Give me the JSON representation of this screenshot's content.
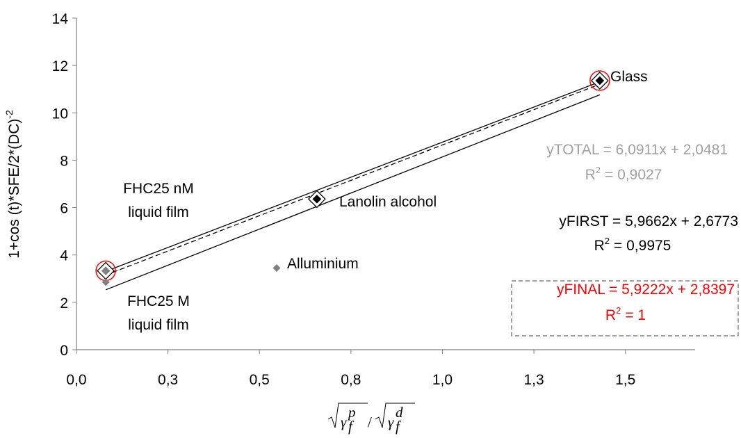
{
  "chart_data": {
    "type": "scatter",
    "y_label": "1+cos (t)*SFE/2*(DC)",
    "y_label_sup": "-2",
    "x_label": {
      "gamma": "γ",
      "sup_p": "p",
      "sub": "f",
      "slash": "/",
      "sup_d": "d"
    },
    "xlim": [
      0,
      1.7
    ],
    "ylim": [
      0,
      14
    ],
    "xticks": [
      {
        "value": 0,
        "label": "0,0"
      },
      {
        "value": 0.25,
        "label": "0,3"
      },
      {
        "value": 0.5,
        "label": "0,5"
      },
      {
        "value": 0.75,
        "label": "0,8"
      },
      {
        "value": 1.0,
        "label": "1,0"
      },
      {
        "value": 1.25,
        "label": "1,3"
      },
      {
        "value": 1.5,
        "label": "1,5"
      }
    ],
    "yticks": [
      0,
      2,
      4,
      6,
      8,
      10,
      12,
      14
    ],
    "points": [
      {
        "label": [
          "FHC25 nM",
          "liquid film"
        ],
        "x": 0.08,
        "y": 3.33,
        "color": "#808080",
        "style": "framed",
        "circled": true
      },
      {
        "label": [
          "FHC25 M",
          "liquid film"
        ],
        "x": 0.08,
        "y": 2.85,
        "color": "#808080",
        "style": "small"
      },
      {
        "label": [
          "Alluminium"
        ],
        "x": 0.547,
        "y": 3.45,
        "color": "#808080",
        "style": "small"
      },
      {
        "label": [
          "Lanolin alcohol"
        ],
        "x": 0.657,
        "y": 6.36,
        "color": "#000000",
        "style": "framed"
      },
      {
        "label": [
          "Glass"
        ],
        "x": 1.43,
        "y": 11.36,
        "color": "#000000",
        "style": "framed",
        "circled": true
      }
    ],
    "fits": [
      {
        "x": [
          0.08,
          1.43
        ],
        "values": [
          2.53,
          10.76
        ],
        "dash": false,
        "text": "yTOTAL = 6,0911x + 2,0481",
        "r2": "= 0,9027",
        "color": "#a0a0a0"
      },
      {
        "x": [
          0.08,
          1.43
        ],
        "values": [
          3.15,
          11.21
        ],
        "dash": true,
        "text": "yFIRST = 5,9662x + 2,6773",
        "r2": "= 0,9975",
        "color": "#000000"
      },
      {
        "x": [
          0.08,
          1.43
        ],
        "values": [
          3.31,
          11.31
        ],
        "dash": false,
        "text": "yFINAL = 5,9222x + 2,8397",
        "r2": "= 1",
        "color": "#ff0000",
        "boxed": true
      }
    ],
    "r2_letter": "R",
    "r2_sup": "2"
  }
}
